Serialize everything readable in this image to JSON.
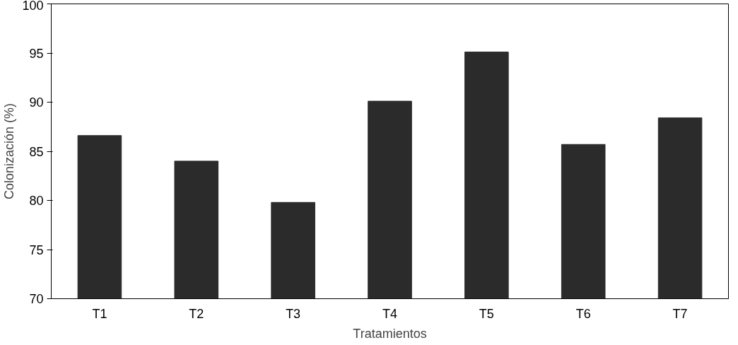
{
  "chart_data": {
    "type": "bar",
    "xlabel": "Tratamientos",
    "ylabel": "Colonización (%)",
    "categories": [
      "T1",
      "T2",
      "T3",
      "T4",
      "T5",
      "T6",
      "T7"
    ],
    "values": [
      86.6,
      84.0,
      79.8,
      90.1,
      95.1,
      85.7,
      88.4
    ],
    "color": "#2b2b2b",
    "ylim": [
      70,
      100
    ],
    "yticks": [
      70,
      75,
      80,
      85,
      90,
      95,
      100
    ],
    "grid": false
  }
}
